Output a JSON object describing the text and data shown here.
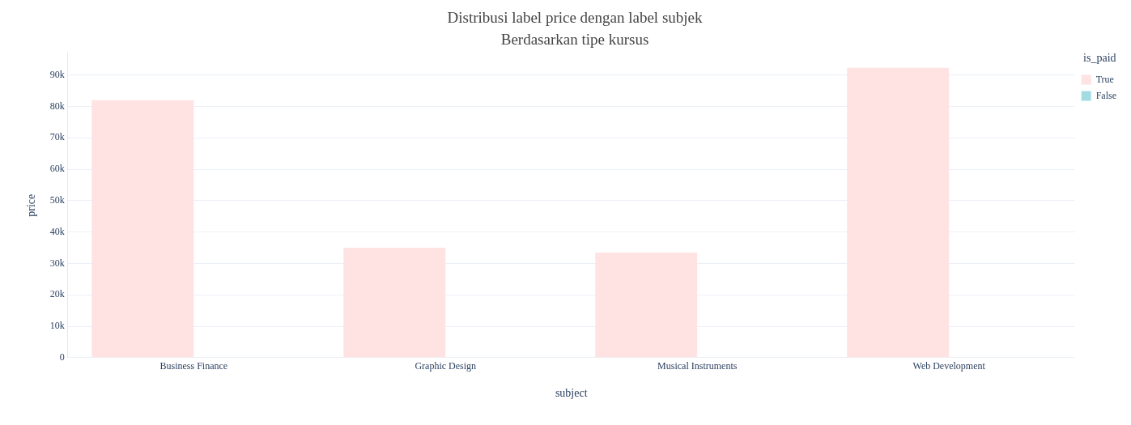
{
  "chart_data": {
    "type": "bar",
    "title": "Distribusi label price dengan label subjek",
    "subtitle": "Berdasarkan tipe kursus",
    "xlabel": "subject",
    "ylabel": "price",
    "legend_title": "is_paid",
    "categories": [
      "Business Finance",
      "Graphic Design",
      "Musical Instruments",
      "Web Development"
    ],
    "series": [
      {
        "name": "True",
        "color": "#ffe2e2",
        "values": [
          82000,
          35000,
          33500,
          92300
        ]
      },
      {
        "name": "False",
        "color": "#a2dce2",
        "values": [
          0,
          0,
          0,
          0
        ]
      }
    ],
    "ylim": [
      0,
      97000
    ],
    "yticks": [
      0,
      {
        "value": 10000,
        "label": "10k"
      },
      {
        "value": 20000,
        "label": "20k"
      },
      {
        "value": 30000,
        "label": "30k"
      },
      {
        "value": 40000,
        "label": "40k"
      },
      {
        "value": 50000,
        "label": "50k"
      },
      {
        "value": 60000,
        "label": "60k"
      },
      {
        "value": 70000,
        "label": "70k"
      },
      {
        "value": 80000,
        "label": "80k"
      },
      {
        "value": 90000,
        "label": "90k"
      }
    ],
    "grid": "y",
    "legend": "top right"
  }
}
